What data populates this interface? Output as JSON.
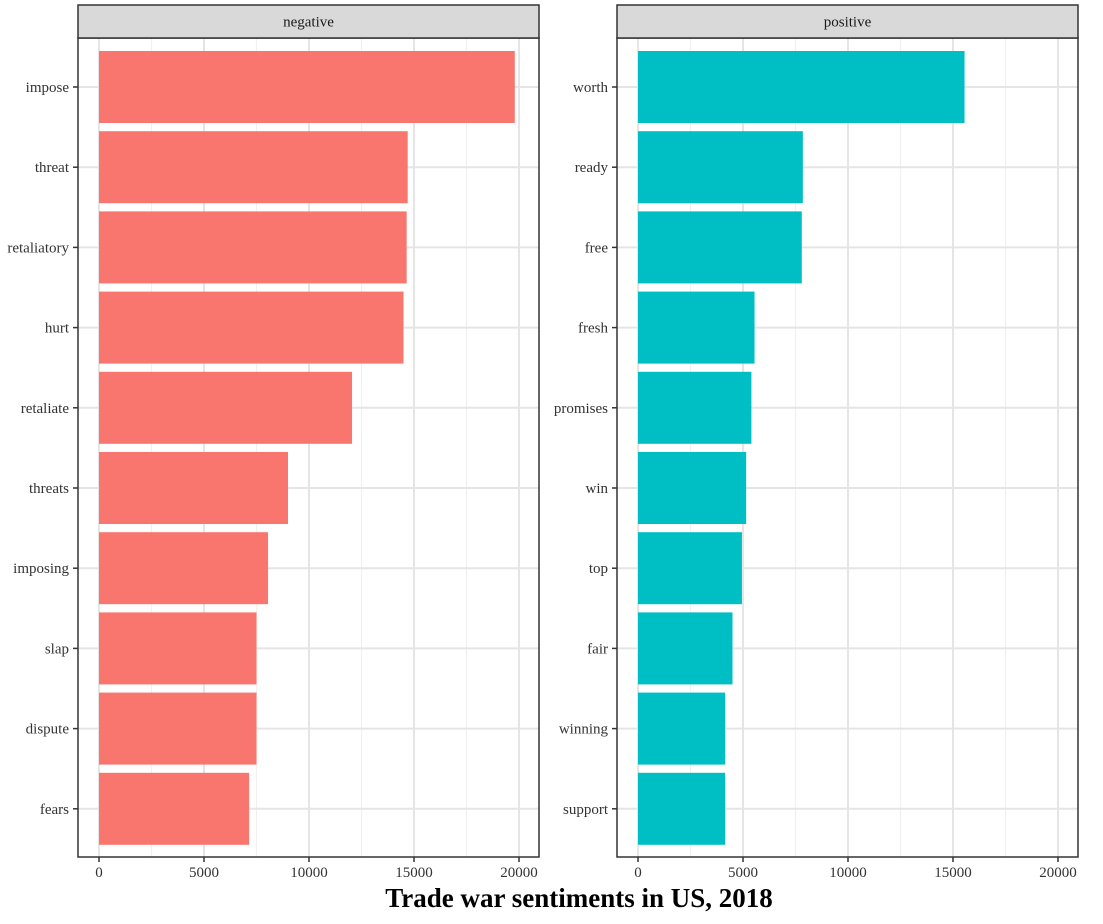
{
  "chart_data": {
    "type": "bar",
    "orientation": "horizontal",
    "title": "Trade war sentiments in US, 2018",
    "xlim": [
      0,
      21000
    ],
    "xticks": [
      0,
      5000,
      10000,
      15000,
      20000
    ],
    "grid": true,
    "legend": "none",
    "panels": [
      {
        "name": "negative",
        "color": "#f8766d",
        "categories": [
          "impose",
          "threat",
          "retaliatory",
          "hurt",
          "retaliate",
          "threats",
          "imposing",
          "slap",
          "dispute",
          "fears"
        ],
        "values": [
          19800,
          14700,
          14650,
          14500,
          12050,
          9000,
          8050,
          7500,
          7500,
          7150
        ]
      },
      {
        "name": "positive",
        "color": "#00bfc4",
        "categories": [
          "worth",
          "ready",
          "free",
          "fresh",
          "promises",
          "win",
          "top",
          "fair",
          "winning",
          "support"
        ],
        "values": [
          15550,
          7850,
          7800,
          5550,
          5400,
          5150,
          4950,
          4500,
          4150,
          4150
        ]
      }
    ]
  }
}
